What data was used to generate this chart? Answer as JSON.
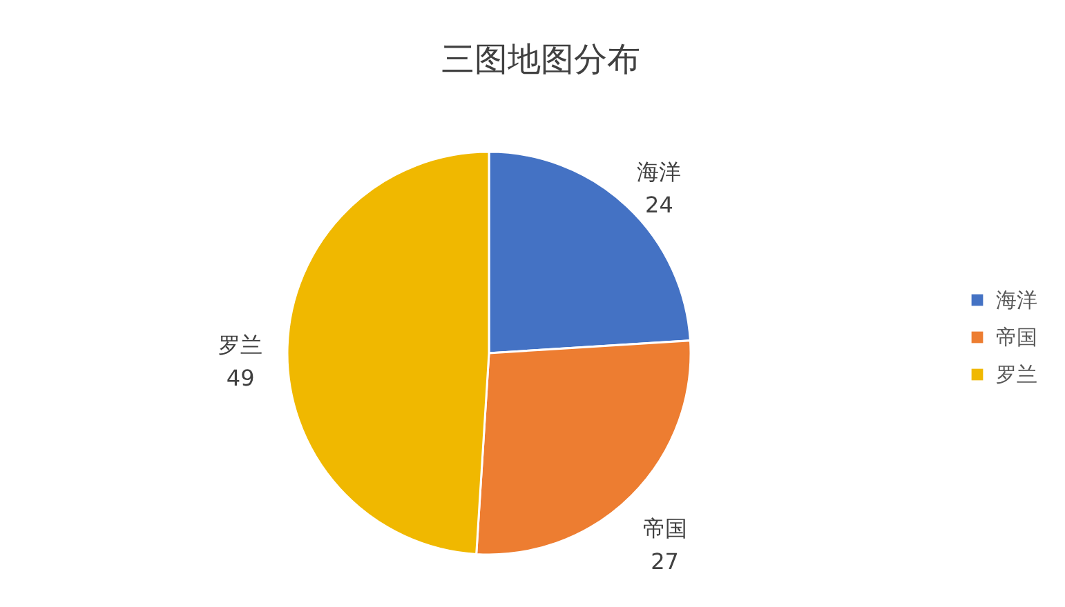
{
  "chart_data": {
    "type": "pie",
    "title": "三图地图分布",
    "categories": [
      "海洋",
      "帝国",
      "罗兰"
    ],
    "values": [
      24,
      27,
      49
    ],
    "colors": [
      "#4472c4",
      "#ed7d31",
      "#f0b800"
    ],
    "data_labels": true,
    "legend": "right"
  }
}
